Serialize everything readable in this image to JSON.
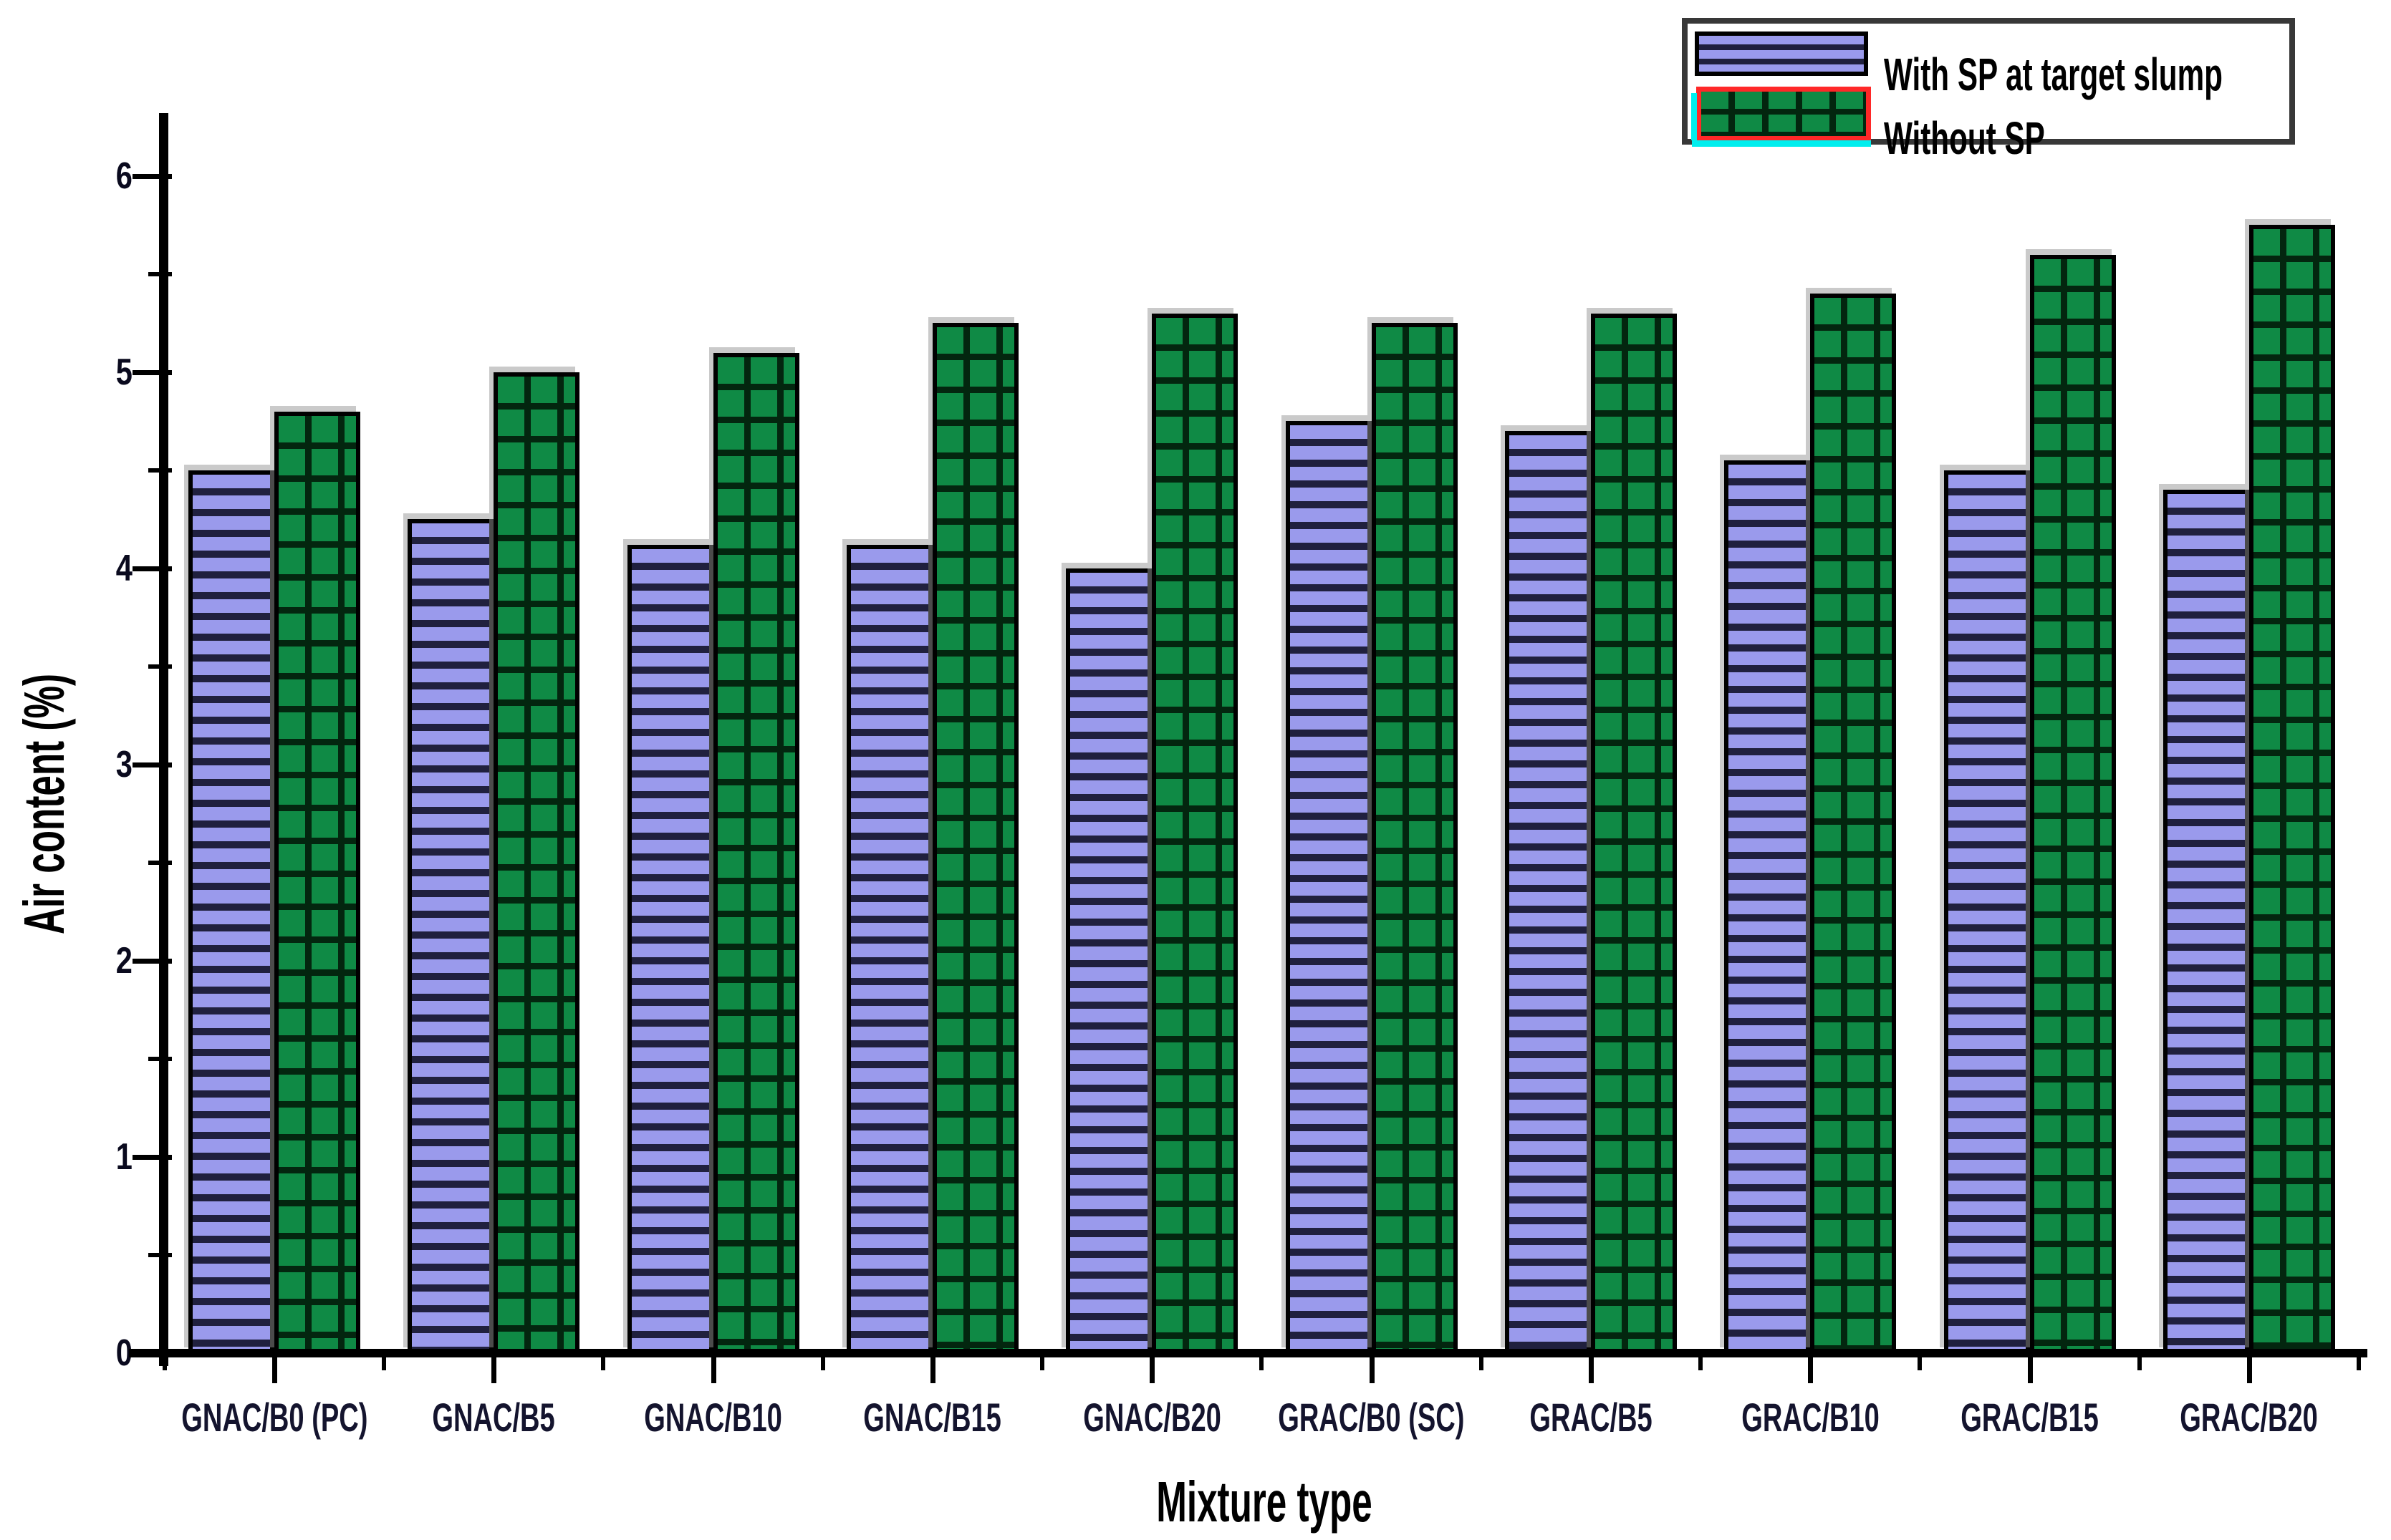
{
  "chart_data": {
    "type": "bar",
    "title": "",
    "xlabel": "Mixture type",
    "ylabel": "Air content (%)",
    "ylim": [
      0,
      6.3
    ],
    "yticks": [
      "0",
      "1",
      "2",
      "3",
      "4",
      "5",
      "6"
    ],
    "ytick_values": [
      0,
      1,
      2,
      3,
      4,
      5,
      6
    ],
    "yticks_minor": [
      0.5,
      1.5,
      2.5,
      3.5,
      4.5,
      5.5
    ],
    "grid": false,
    "legend_position": "top-right",
    "categories": [
      "GNAC/B0 (PC)",
      "GNAC/B5",
      "GNAC/B10",
      "GNAC/B15",
      "GNAC/B20",
      "GRAC/B0 (SC)",
      "GRAC/B5",
      "GRAC/B10",
      "GRAC/B15",
      "GRAC/B20"
    ],
    "series": [
      {
        "name": "With SP at target slump",
        "values": [
          4.5,
          4.25,
          4.12,
          4.12,
          4.0,
          4.75,
          4.7,
          4.55,
          4.5,
          4.4
        ],
        "fill": "#9a9aec",
        "pattern": "horizontal-stripes",
        "pattern_color": "#20203e"
      },
      {
        "name": "Without SP",
        "values": [
          4.8,
          5.0,
          5.1,
          5.25,
          5.3,
          5.25,
          5.3,
          5.4,
          5.6,
          5.75
        ],
        "fill": "#0f8a45",
        "pattern": "crosshatch",
        "pattern_color": "#03260f"
      }
    ],
    "legend": {
      "selected_entry": "Without SP",
      "selection_outline_color": "#ff2828",
      "selection_underline_color": "#00eeee"
    },
    "axis_color": "#000000",
    "label_color": "#14142e"
  }
}
